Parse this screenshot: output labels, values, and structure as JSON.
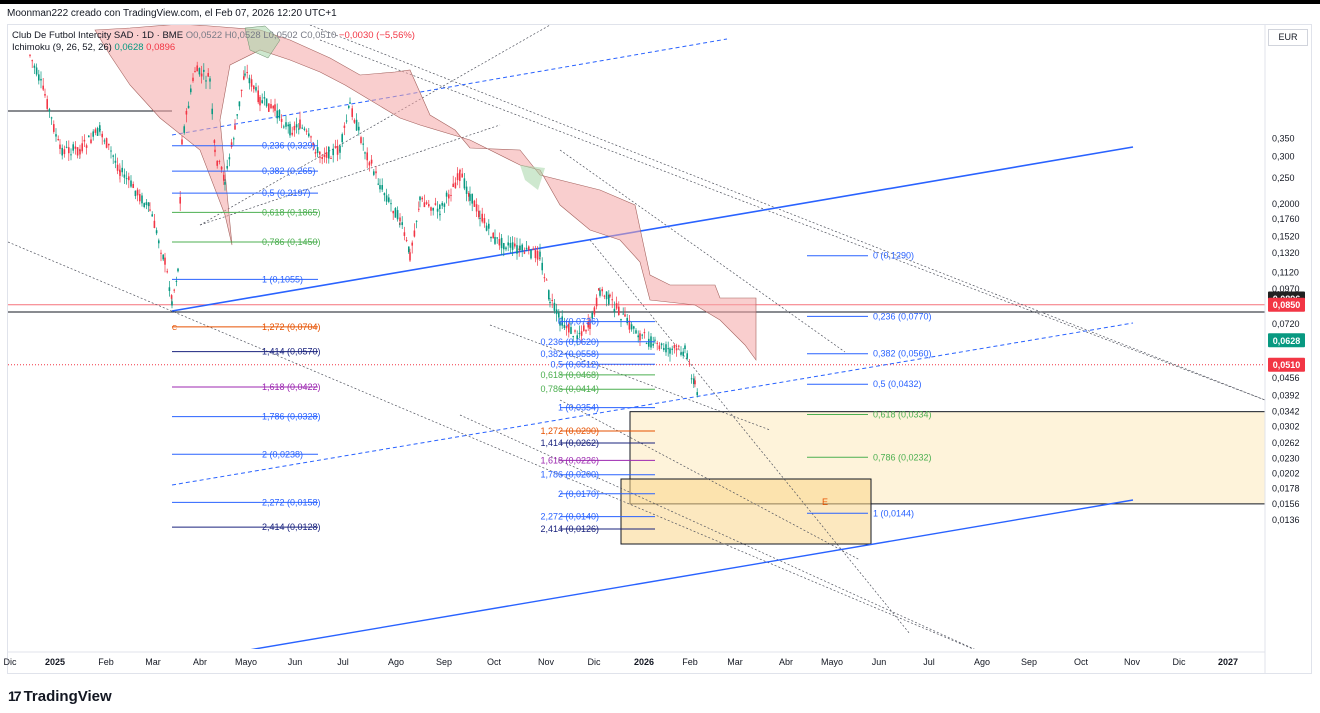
{
  "header": {
    "creator": "Moonman222 creado con TradingView.com, el Feb 07, 2026 12:20 UTC+1"
  },
  "legend": {
    "symbol": "Club De Futbol Intercity SAD · 1D · BME",
    "open": "O0,0522",
    "high": "H0,0528",
    "low": "L0,0502",
    "close": "C0,0510",
    "change": "−0,0030 (−5,56%)",
    "ichimoku_label": "Ichimoku (9, 26, 52, 26)",
    "ichimoku_v1": "0,0628",
    "ichimoku_v2": "0,0896"
  },
  "currency": "EUR",
  "brand": {
    "logo_text": "17",
    "name": "TradingView"
  },
  "colors": {
    "up": "#089981",
    "down": "#f23645",
    "cloud": "#f4a6a6",
    "trend_blue": "#2962ff",
    "fib_green": "#4caf50",
    "fib_orange": "#e65100",
    "fib_purple": "#9c27b0",
    "fib_navy": "#1a237e",
    "zone_fill": "#fdeabc"
  },
  "chart_data": {
    "type": "candlestick",
    "scale": "log",
    "y_ticks": [
      "0,350",
      "0,300",
      "0,250",
      "0,2000",
      "0,1760",
      "0,1520",
      "0,1320",
      "0,1120",
      "0,0970",
      "0,0720",
      "0,0456",
      "0,0392",
      "0,0342",
      "0,0302",
      "0,0262",
      "0,0230",
      "0,0202",
      "0,0178",
      "0,0156",
      "0,0136"
    ],
    "y_tick_values": [
      0.35,
      0.3,
      0.25,
      0.2,
      0.176,
      0.152,
      0.132,
      0.112,
      0.097,
      0.072,
      0.0456,
      0.0392,
      0.0342,
      0.0302,
      0.0262,
      0.023,
      0.0202,
      0.0178,
      0.0156,
      0.0136
    ],
    "x_ticks": [
      "Dic",
      "2025",
      "Feb",
      "Mar",
      "Abr",
      "Mayo",
      "Jun",
      "Jul",
      "Ago",
      "Sep",
      "Oct",
      "Nov",
      "Dic",
      "2026",
      "Feb",
      "Mar",
      "Abr",
      "Mayo",
      "Jun",
      "Jul",
      "Ago",
      "Sep",
      "Oct",
      "Nov",
      "Dic",
      "2027"
    ],
    "x_tick_bold": [
      "2025",
      "2026",
      "2027"
    ],
    "price_badges": [
      {
        "label": "0,0896",
        "value": 0.0896,
        "color": "#212121"
      },
      {
        "label": "0,0850",
        "value": 0.085,
        "color": "#f23645"
      },
      {
        "label": "0,0628",
        "value": 0.0628,
        "color": "#089981"
      },
      {
        "label": "0,0510",
        "value": 0.051,
        "color": "#f23645"
      }
    ],
    "last_close": 0.051,
    "fib_set_a": [
      {
        "label": "0,236 (0,329)",
        "value": 0.329,
        "color": "#2962ff"
      },
      {
        "label": "0,382 (0,265)",
        "value": 0.265,
        "color": "#2962ff"
      },
      {
        "label": "0,5 (0,2197)",
        "value": 0.2197,
        "color": "#2962ff"
      },
      {
        "label": "0,618 (0,1865)",
        "value": 0.1865,
        "color": "#4caf50"
      },
      {
        "label": "0,786 (0,1450)",
        "value": 0.145,
        "color": "#4caf50"
      },
      {
        "label": "1 (0,1055)",
        "value": 0.1055,
        "color": "#2962ff"
      },
      {
        "label": "1,272 (0,0704)",
        "value": 0.0704,
        "color": "#e65100"
      },
      {
        "label": "1,414 (0,0570)",
        "value": 0.057,
        "color": "#1a237e"
      },
      {
        "label": "1,618 (0,0422)",
        "value": 0.0422,
        "color": "#9c27b0"
      },
      {
        "label": "1,786 (0,0328)",
        "value": 0.0328,
        "color": "#2962ff"
      },
      {
        "label": "2 (0,0238)",
        "value": 0.0238,
        "color": "#2962ff"
      },
      {
        "label": "2,272 (0,0158)",
        "value": 0.0158,
        "color": "#2962ff"
      },
      {
        "label": "2,414 (0,0128)",
        "value": 0.0128,
        "color": "#1a237e"
      }
    ],
    "fib_set_b": [
      {
        "label": "0 (0,0736)",
        "value": 0.0736,
        "color": "#2962ff"
      },
      {
        "label": "0,236 (0,0620)",
        "value": 0.062,
        "color": "#2962ff"
      },
      {
        "label": "0,382 (0,0558)",
        "value": 0.0558,
        "color": "#2962ff"
      },
      {
        "label": "0,5 (0,0512)",
        "value": 0.0512,
        "color": "#2962ff"
      },
      {
        "label": "0,618 (0,0468)",
        "value": 0.0468,
        "color": "#4caf50"
      },
      {
        "label": "0,786 (0,0414)",
        "value": 0.0414,
        "color": "#4caf50"
      },
      {
        "label": "1 (0,0354)",
        "value": 0.0354,
        "color": "#2962ff"
      },
      {
        "label": "1,272 (0,0290)",
        "value": 0.029,
        "color": "#e65100"
      },
      {
        "label": "1,414 (0,0262)",
        "value": 0.0262,
        "color": "#1a237e"
      },
      {
        "label": "1,618 (0,0226)",
        "value": 0.0226,
        "color": "#9c27b0"
      },
      {
        "label": "1,786 (0,0200)",
        "value": 0.02,
        "color": "#2962ff"
      },
      {
        "label": "2 (0,0170)",
        "value": 0.017,
        "color": "#2962ff"
      },
      {
        "label": "2,272 (0,0140)",
        "value": 0.014,
        "color": "#2962ff"
      },
      {
        "label": "2,414 (0,0126)",
        "value": 0.0126,
        "color": "#1a237e"
      }
    ],
    "fib_set_c": [
      {
        "label": "0 (0,1290)",
        "value": 0.129,
        "color": "#2962ff"
      },
      {
        "label": "0,236 (0,0770)",
        "value": 0.077,
        "color": "#2962ff"
      },
      {
        "label": "0,382 (0,0560)",
        "value": 0.056,
        "color": "#2962ff"
      },
      {
        "label": "0,5 (0,0432)",
        "value": 0.0432,
        "color": "#2962ff"
      },
      {
        "label": "0,618 (0,0334)",
        "value": 0.0334,
        "color": "#4caf50"
      },
      {
        "label": "0,786 (0,0232)",
        "value": 0.0232,
        "color": "#4caf50"
      },
      {
        "label": "1 (0,0144)",
        "value": 0.0144,
        "color": "#2962ff"
      }
    ],
    "zone_label": "E",
    "small_marker_label": "C"
  }
}
